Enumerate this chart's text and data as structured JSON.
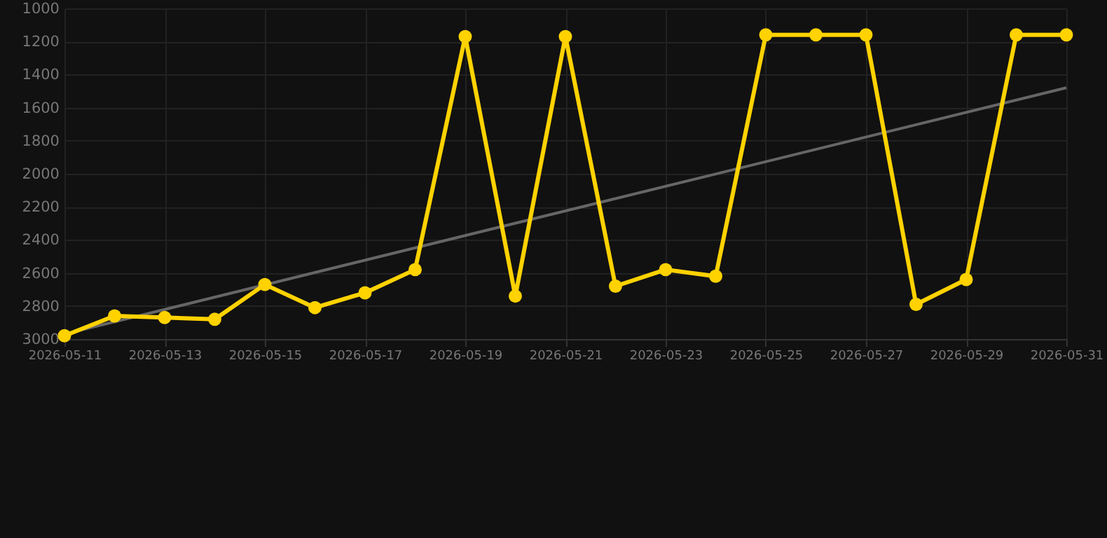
{
  "chart_data": {
    "type": "line",
    "x": [
      "2026-05-11",
      "2026-05-12",
      "2026-05-13",
      "2026-05-14",
      "2026-05-15",
      "2026-05-16",
      "2026-05-17",
      "2026-05-18",
      "2026-05-19",
      "2026-05-20",
      "2026-05-21",
      "2026-05-22",
      "2026-05-23",
      "2026-05-24",
      "2026-05-25",
      "2026-05-26",
      "2026-05-27",
      "2026-05-28",
      "2026-05-29",
      "2026-05-30",
      "2026-05-31"
    ],
    "series": [
      {
        "color": "#ffd200",
        "marker": "circle",
        "values": [
          2980,
          2860,
          2870,
          2880,
          2670,
          2810,
          2720,
          2580,
          1170,
          2740,
          1170,
          2680,
          2580,
          2620,
          1160,
          1160,
          1160,
          2790,
          2640,
          1160,
          1160
        ]
      },
      {
        "type": "line",
        "color": "#666666",
        "marker": "none",
        "x": [
          "2026-05-11",
          "2026-05-31"
        ],
        "values": [
          2970,
          1480
        ]
      }
    ],
    "ylim": [
      3000,
      1000
    ],
    "yticks": [
      1000,
      1200,
      1400,
      1600,
      1800,
      2000,
      2200,
      2400,
      2600,
      2800,
      3000
    ],
    "xlim": [
      "2026-05-11",
      "2026-05-31"
    ],
    "xticks": [
      "2026-05-11",
      "2026-05-13",
      "2026-05-15",
      "2026-05-17",
      "2026-05-19",
      "2026-05-21",
      "2026-05-23",
      "2026-05-25",
      "2026-05-27",
      "2026-05-29",
      "2026-05-31"
    ],
    "grid": true
  }
}
